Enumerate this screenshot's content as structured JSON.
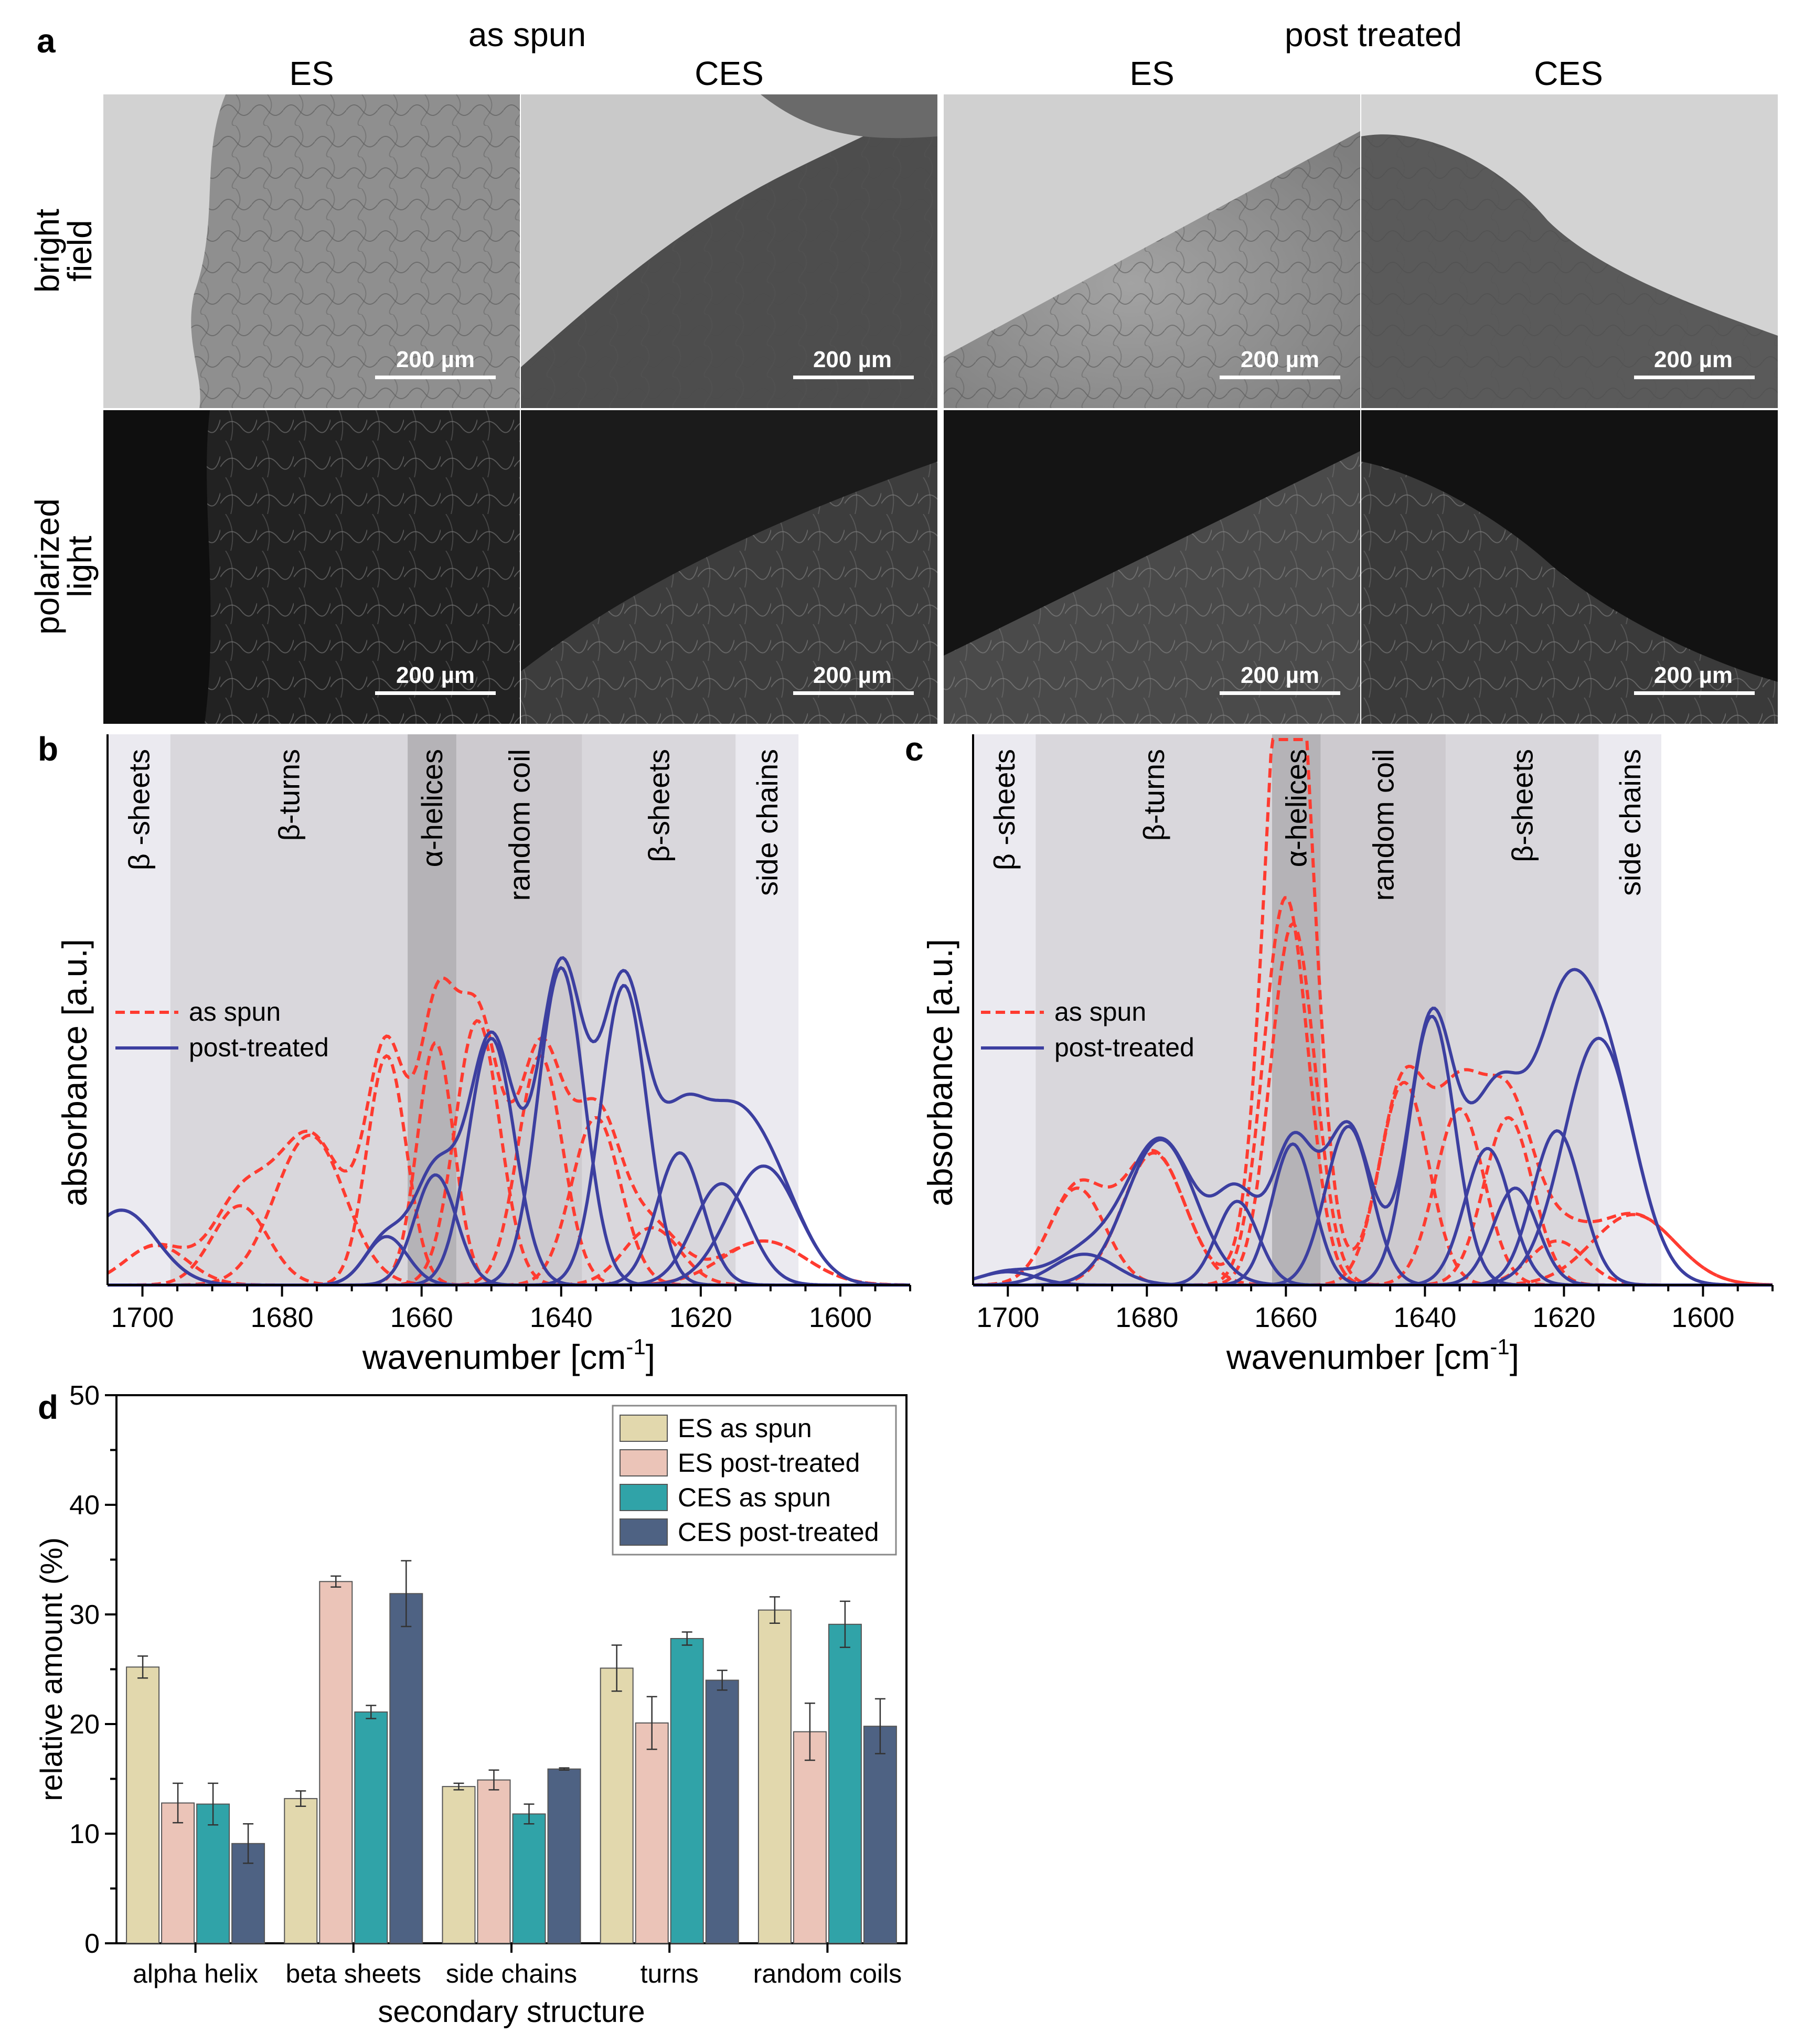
{
  "panel_a": {
    "letter": "a",
    "groups": [
      "as spun",
      "post treated"
    ],
    "columns": [
      "ES",
      "CES",
      "ES",
      "CES"
    ],
    "rows": [
      [
        "bright",
        "field"
      ],
      [
        "polarized",
        "light"
      ]
    ],
    "scale_bar": "200 µm"
  },
  "palette": {
    "as_spun": "#ff3b30",
    "post_treated": "#3c3fa0",
    "bands": [
      "#ebeaf0",
      "#d9d7dc",
      "#b5b3b7",
      "#cdcacf",
      "#d9d7dc",
      "#ebeaf0"
    ]
  },
  "chart_data": [
    {
      "panel": "b",
      "type": "line",
      "xlabel": "wavenumber [cm",
      "xlabel_sup": "-1",
      "xlabel_end": "]",
      "ylabel": "absorbance [a.u.]",
      "xlim": [
        1705,
        1590
      ],
      "xticks": [
        1700,
        1680,
        1660,
        1640,
        1620,
        1600
      ],
      "bands": [
        {
          "label": "β -sheets",
          "from": 1705,
          "to": 1696
        },
        {
          "label": "β-turns",
          "from": 1696,
          "to": 1662
        },
        {
          "label": "α-helices",
          "from": 1662,
          "to": 1655
        },
        {
          "label": "random coil",
          "from": 1655,
          "to": 1637
        },
        {
          "label": "β-sheets",
          "from": 1637,
          "to": 1615
        },
        {
          "label": "side chains",
          "from": 1615,
          "to": 1606
        }
      ],
      "legend": [
        "as spun",
        "post-treated"
      ],
      "series": [
        {
          "name": "as spun",
          "style": "dashed",
          "components": [
            {
              "center": 1698,
              "height": 0.09,
              "width": 4.5
            },
            {
              "center": 1686,
              "height": 0.18,
              "width": 4
            },
            {
              "center": 1676,
              "height": 0.34,
              "width": 5
            },
            {
              "center": 1665,
              "height": 0.52,
              "width": 2.8
            },
            {
              "center": 1658,
              "height": 0.55,
              "width": 2.6
            },
            {
              "center": 1652,
              "height": 0.6,
              "width": 3.2
            },
            {
              "center": 1643,
              "height": 0.52,
              "width": 3.2
            },
            {
              "center": 1635,
              "height": 0.38,
              "width": 3.5
            },
            {
              "center": 1627,
              "height": 0.13,
              "width": 4
            },
            {
              "center": 1611,
              "height": 0.1,
              "width": 6
            }
          ]
        },
        {
          "name": "post-treated",
          "style": "solid",
          "components": [
            {
              "center": 1703,
              "height": 0.17,
              "width": 5
            },
            {
              "center": 1665,
              "height": 0.11,
              "width": 3
            },
            {
              "center": 1658,
              "height": 0.25,
              "width": 3
            },
            {
              "center": 1650,
              "height": 0.56,
              "width": 3.3
            },
            {
              "center": 1640,
              "height": 0.72,
              "width": 3.3
            },
            {
              "center": 1631,
              "height": 0.68,
              "width": 3.3
            },
            {
              "center": 1623,
              "height": 0.3,
              "width": 3.3
            },
            {
              "center": 1617,
              "height": 0.23,
              "width": 4
            },
            {
              "center": 1611,
              "height": 0.27,
              "width": 5
            }
          ]
        }
      ]
    },
    {
      "panel": "c",
      "type": "line",
      "xlabel": "wavenumber [cm",
      "xlabel_sup": "-1",
      "xlabel_end": "]",
      "ylabel": "absorbance [a.u.]",
      "xlim": [
        1705,
        1590
      ],
      "xticks": [
        1700,
        1680,
        1660,
        1640,
        1620,
        1600
      ],
      "bands": [
        {
          "label": "β -sheets",
          "from": 1705,
          "to": 1696
        },
        {
          "label": "β-turns",
          "from": 1696,
          "to": 1662
        },
        {
          "label": "α-helices",
          "from": 1662,
          "to": 1655
        },
        {
          "label": "random coil",
          "from": 1655,
          "to": 1637
        },
        {
          "label": "β-sheets",
          "from": 1637,
          "to": 1615
        },
        {
          "label": "side chains",
          "from": 1615,
          "to": 1606
        }
      ],
      "legend": [
        "as spun",
        "post-treated"
      ],
      "series": [
        {
          "name": "as spun",
          "style": "dashed",
          "components": [
            {
              "center": 1690,
              "height": 0.22,
              "width": 4
            },
            {
              "center": 1679,
              "height": 0.3,
              "width": 4.5
            },
            {
              "center": 1660,
              "height": 0.88,
              "width": 3.2
            },
            {
              "center": 1659,
              "height": 0.82,
              "width": 3.2
            },
            {
              "center": 1643,
              "height": 0.46,
              "width": 3.5
            },
            {
              "center": 1635,
              "height": 0.4,
              "width": 3.5
            },
            {
              "center": 1628,
              "height": 0.38,
              "width": 3.5
            },
            {
              "center": 1621,
              "height": 0.1,
              "width": 4
            },
            {
              "center": 1610,
              "height": 0.16,
              "width": 6
            }
          ]
        },
        {
          "name": "post-treated",
          "style": "solid",
          "components": [
            {
              "center": 1700,
              "height": 0.03,
              "width": 4
            },
            {
              "center": 1689,
              "height": 0.07,
              "width": 4.5
            },
            {
              "center": 1678,
              "height": 0.33,
              "width": 5
            },
            {
              "center": 1667,
              "height": 0.19,
              "width": 3
            },
            {
              "center": 1659,
              "height": 0.32,
              "width": 3
            },
            {
              "center": 1651,
              "height": 0.36,
              "width": 3.3
            },
            {
              "center": 1639,
              "height": 0.61,
              "width": 3.3
            },
            {
              "center": 1631,
              "height": 0.31,
              "width": 3.3
            },
            {
              "center": 1627,
              "height": 0.22,
              "width": 3.2
            },
            {
              "center": 1621,
              "height": 0.35,
              "width": 3.5
            },
            {
              "center": 1615,
              "height": 0.56,
              "width": 5
            }
          ]
        }
      ]
    },
    {
      "panel": "d",
      "type": "bar",
      "title": "",
      "xlabel": "secondary structure",
      "ylabel": "relative amount (%)",
      "ylim": [
        0,
        50
      ],
      "yticks": [
        0,
        10,
        20,
        30,
        40,
        50
      ],
      "categories": [
        "alpha helix",
        "beta sheets",
        "side chains",
        "turns",
        "random coils"
      ],
      "series": [
        {
          "name": "ES as spun",
          "color": "#e2d8ad",
          "values": [
            25.2,
            13.2,
            14.3,
            25.1,
            30.4
          ],
          "errors": [
            1.0,
            0.7,
            0.3,
            2.1,
            1.2
          ]
        },
        {
          "name": "ES post-treated",
          "color": "#ebc4b8",
          "values": [
            12.8,
            33.0,
            14.9,
            20.1,
            19.3
          ],
          "errors": [
            1.8,
            0.5,
            0.9,
            2.4,
            2.6
          ]
        },
        {
          "name": "CES as spun",
          "color": "#30a3a8",
          "values": [
            12.7,
            21.1,
            11.8,
            27.8,
            29.1
          ],
          "errors": [
            1.9,
            0.6,
            0.9,
            0.6,
            2.1
          ]
        },
        {
          "name": "CES post-treated",
          "color": "#4e6283",
          "values": [
            9.1,
            31.9,
            15.9,
            24.0,
            19.8
          ],
          "errors": [
            1.8,
            3.0,
            0.1,
            0.9,
            2.5
          ]
        }
      ]
    }
  ]
}
